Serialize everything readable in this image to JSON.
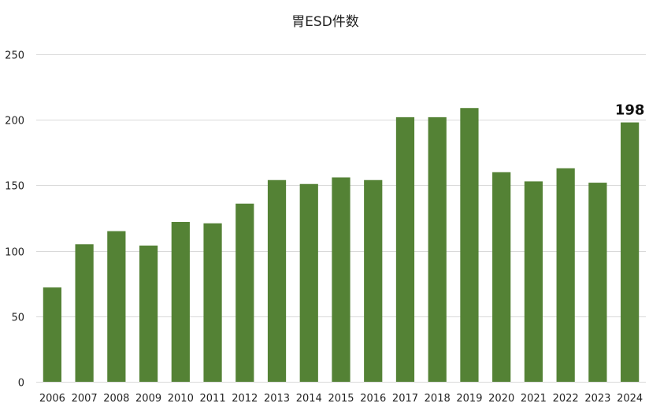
{
  "chart_data": {
    "type": "bar",
    "title": "胃ESD件数",
    "xlabel": "",
    "ylabel": "",
    "categories": [
      "2006",
      "2007",
      "2008",
      "2009",
      "2010",
      "2011",
      "2012",
      "2013",
      "2014",
      "2015",
      "2016",
      "2017",
      "2018",
      "2019",
      "2020",
      "2021",
      "2022",
      "2023",
      "2024"
    ],
    "values": [
      72,
      105,
      115,
      104,
      122,
      121,
      136,
      154,
      151,
      156,
      154,
      202,
      202,
      209,
      160,
      153,
      163,
      152,
      198
    ],
    "ylim": [
      0,
      250
    ],
    "yticks": [
      "0",
      "50",
      "100",
      "150",
      "200",
      "250"
    ],
    "grid": true,
    "legend": "none",
    "bar_color": "#548235",
    "data_labels": [
      {
        "category": "2024",
        "text": "198"
      }
    ]
  }
}
